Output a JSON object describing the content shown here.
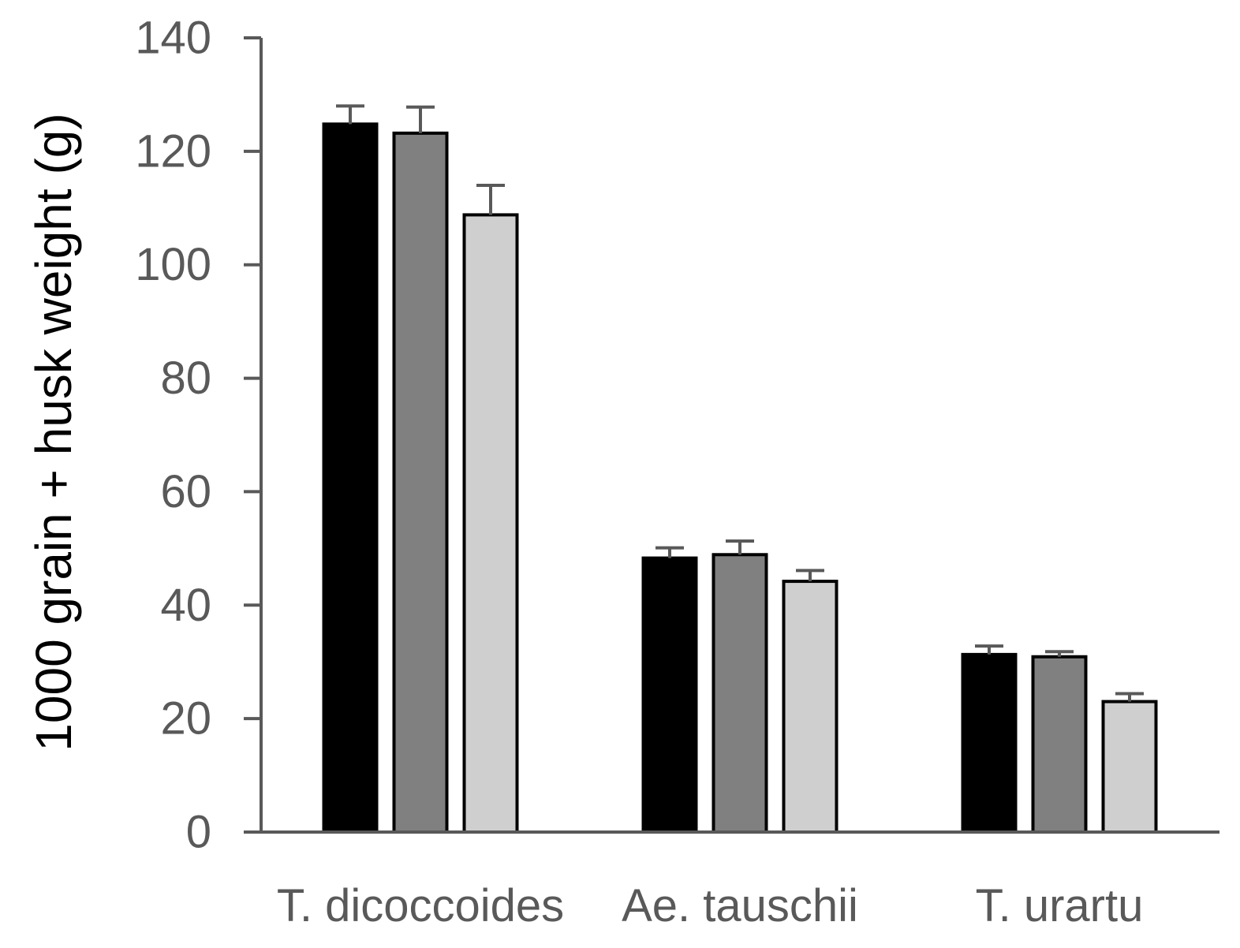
{
  "chart_data": {
    "type": "bar",
    "ylabel": "1000 grain + husk weight (g)",
    "xlabel": "",
    "ylim": [
      0,
      140
    ],
    "yticks": [
      0,
      20,
      40,
      60,
      80,
      100,
      120,
      140
    ],
    "categories": [
      "T. dicoccoides",
      "Ae. tauschii",
      "T. urartu"
    ],
    "series": [
      {
        "color": "#000000",
        "values": [
          124.8,
          48.3,
          31.3
        ],
        "errors": [
          3.2,
          1.8,
          1.5
        ]
      },
      {
        "color": "#808080",
        "values": [
          123.2,
          48.9,
          30.9
        ],
        "errors": [
          4.6,
          2.4,
          0.9
        ]
      },
      {
        "color": "#d0cfd0",
        "values": [
          108.8,
          44.2,
          23.0
        ],
        "errors": [
          5.2,
          1.9,
          1.4
        ]
      }
    ],
    "legend": "none",
    "grid": false
  },
  "colors": {
    "axis": "#595959",
    "bar_outline": "#000000",
    "error_bar": "#595959"
  }
}
